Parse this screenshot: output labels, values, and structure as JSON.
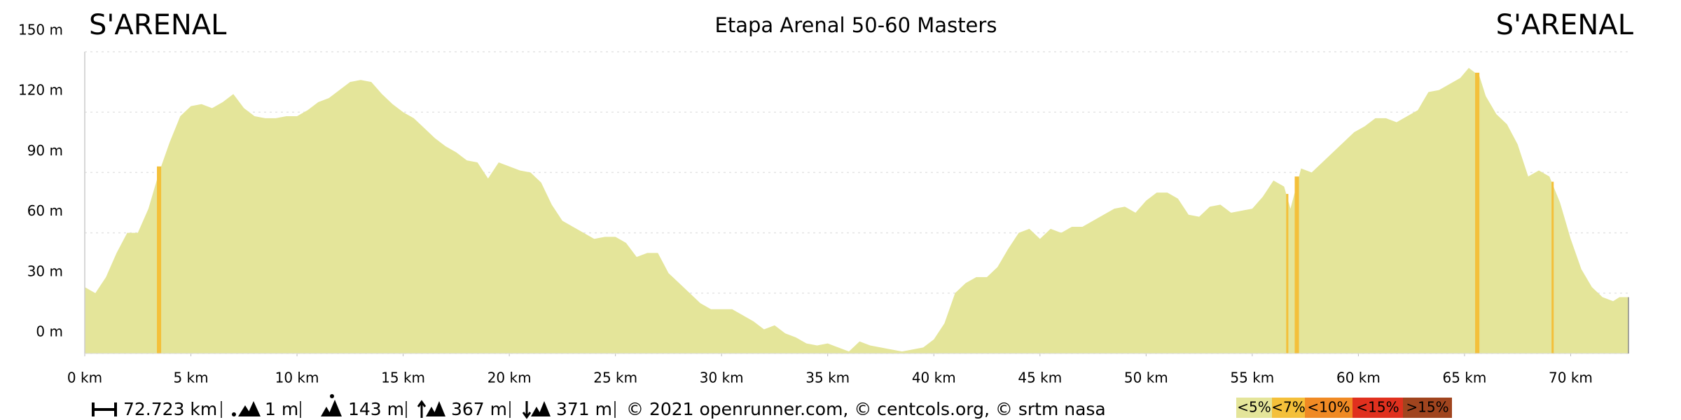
{
  "chart_data": {
    "type": "area",
    "title": "Etapa Arenal 50-60 Masters",
    "start_label": "S'ARENAL",
    "end_label": "S'ARENAL",
    "color": "#e4e59a",
    "x": [
      0,
      0.5,
      1,
      1.5,
      2,
      2.5,
      3,
      3.5,
      4,
      4.5,
      5,
      5.5,
      6,
      6.5,
      7,
      7.5,
      8,
      8.5,
      9,
      9.5,
      10,
      10.5,
      11,
      11.5,
      12,
      12.5,
      13,
      13.5,
      14,
      14.5,
      15,
      15.5,
      16,
      16.5,
      17,
      17.5,
      18,
      18.5,
      19,
      19.5,
      20,
      20.5,
      21,
      21.5,
      22,
      22.5,
      23,
      23.5,
      24,
      24.5,
      25,
      25.5,
      26,
      26.5,
      27,
      27.5,
      28,
      28.5,
      29,
      29.5,
      30,
      30.5,
      31,
      31.5,
      32,
      32.5,
      33,
      33.5,
      34,
      34.5,
      35,
      35.5,
      36,
      36.5,
      37,
      37.5,
      38,
      38.5,
      39,
      39.5,
      40,
      40.5,
      41,
      41.5,
      42,
      42.5,
      43,
      43.5,
      44,
      44.5,
      45,
      45.5,
      46,
      46.5,
      47,
      47.5,
      48,
      48.5,
      49,
      49.5,
      50,
      50.5,
      51,
      51.5,
      52,
      52.5,
      53,
      53.5,
      54,
      54.5,
      55,
      55.5,
      56,
      56.5,
      56.8,
      57.3,
      57.8,
      58.3,
      58.8,
      59.3,
      59.8,
      60.3,
      60.8,
      61.3,
      61.8,
      62.3,
      62.8,
      63.3,
      63.8,
      64.3,
      64.8,
      65.2,
      65.7,
      66,
      66.5,
      67,
      67.5,
      68,
      68.5,
      69,
      69.5,
      70,
      70.5,
      71,
      71.5,
      72,
      72.3,
      72.723
    ],
    "values": [
      33,
      30,
      38,
      50,
      60,
      60,
      72,
      90,
      105,
      118,
      123,
      124,
      122,
      125,
      129,
      122,
      118,
      117,
      117,
      118,
      118,
      121,
      125,
      127,
      131,
      135,
      136,
      135,
      129,
      124,
      120,
      117,
      112,
      107,
      103,
      100,
      96,
      95,
      87,
      95,
      93,
      91,
      90,
      85,
      74,
      66,
      63,
      60,
      57,
      58,
      58,
      55,
      48,
      50,
      50,
      40,
      35,
      30,
      25,
      22,
      22,
      22,
      19,
      16,
      12,
      14,
      10,
      8,
      5,
      4,
      5,
      3,
      1,
      6,
      4,
      3,
      2,
      1,
      2,
      3,
      7,
      15,
      30,
      35,
      38,
      38,
      43,
      52,
      60,
      62,
      57,
      62,
      60,
      63,
      63,
      66,
      69,
      72,
      73,
      70,
      76,
      80,
      80,
      77,
      69,
      68,
      73,
      74,
      70,
      71,
      72,
      78,
      86,
      83,
      72,
      92,
      90,
      95,
      100,
      105,
      110,
      113,
      117,
      117,
      115,
      118,
      121,
      130,
      131,
      134,
      137,
      142,
      138,
      128,
      119,
      114,
      104,
      88,
      91,
      88,
      75,
      57,
      42,
      33,
      28,
      26,
      28,
      28
    ],
    "steep_color": "#f4c03a",
    "steep_sections": [
      [
        3.4,
        3.6
      ],
      [
        56.6,
        56.7
      ],
      [
        57.0,
        57.2
      ],
      [
        65.5,
        65.7
      ],
      [
        69.1,
        69.2
      ]
    ],
    "xlim": [
      0,
      72.723
    ],
    "ylim": [
      0,
      150
    ],
    "xticks": [
      {
        "value": 0,
        "label": "0 km"
      },
      {
        "value": 5,
        "label": "5 km"
      },
      {
        "value": 10,
        "label": "10 km"
      },
      {
        "value": 15,
        "label": "15 km"
      },
      {
        "value": 20,
        "label": "20 km"
      },
      {
        "value": 25,
        "label": "25 km"
      },
      {
        "value": 30,
        "label": "30 km"
      },
      {
        "value": 35,
        "label": "35 km"
      },
      {
        "value": 40,
        "label": "40 km"
      },
      {
        "value": 45,
        "label": "45 km"
      },
      {
        "value": 50,
        "label": "50 km"
      },
      {
        "value": 55,
        "label": "55 km"
      },
      {
        "value": 60,
        "label": "60 km"
      },
      {
        "value": 65,
        "label": "65 km"
      },
      {
        "value": 70,
        "label": "70 km"
      }
    ],
    "yticks": [
      {
        "value": 0,
        "label": "0 m"
      },
      {
        "value": 30,
        "label": "30 m"
      },
      {
        "value": 60,
        "label": "60 m"
      },
      {
        "value": 90,
        "label": "90 m"
      },
      {
        "value": 120,
        "label": "120 m"
      },
      {
        "value": 150,
        "label": "150 m"
      }
    ],
    "grid": true,
    "stats": [
      "72.723 km",
      "1 m",
      "143 m",
      "367 m",
      "371 m"
    ],
    "credits": "© 2021 openrunner.com, © centcols.org, © srtm nasa",
    "legend": [
      {
        "label": "<5%",
        "color": "#e4e59a"
      },
      {
        "label": "<7%",
        "color": "#f4c03a"
      },
      {
        "label": "<10%",
        "color": "#f08a24"
      },
      {
        "label": "<15%",
        "color": "#e0301e"
      },
      {
        "label": ">15%",
        "color": "#a0441e"
      }
    ]
  }
}
